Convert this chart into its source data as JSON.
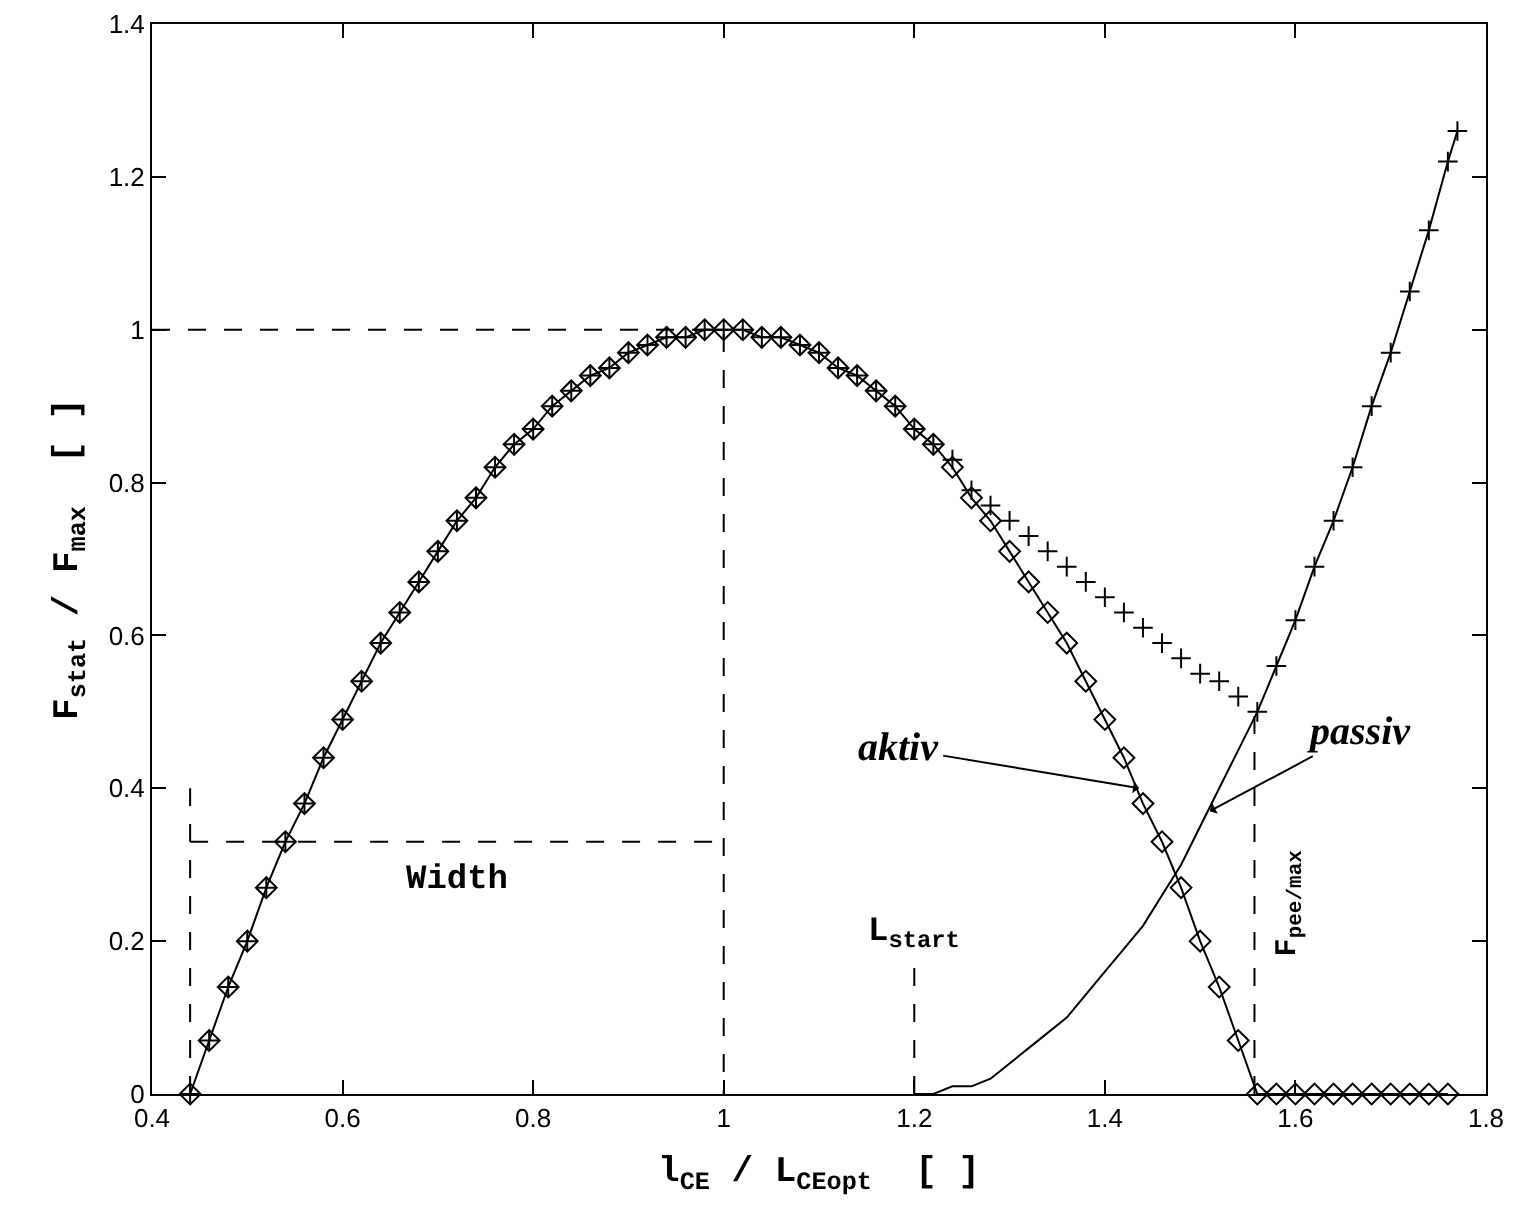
{
  "chart_data": {
    "type": "line",
    "xlabel": "l$_{CE}$ / L$_{CEopt}$  [ ]",
    "ylabel": "F$_{stat}$ / F$_{max}$  [ ]",
    "xlim": [
      0.4,
      1.8
    ],
    "xticks": [
      0.4,
      0.6,
      0.8,
      1,
      1.2,
      1.4,
      1.6,
      1.8
    ],
    "ylim": [
      0,
      1.4
    ],
    "yticks": [
      0,
      0.2,
      0.4,
      0.6,
      0.8,
      1,
      1.2,
      1.4
    ],
    "grid": false,
    "series": [
      {
        "marker": "diamond",
        "color": "#000000",
        "x": [
          0.44,
          0.46,
          0.48,
          0.5,
          0.52,
          0.54,
          0.56,
          0.58,
          0.6,
          0.62,
          0.64,
          0.66,
          0.68,
          0.7,
          0.72,
          0.74,
          0.76,
          0.78,
          0.8,
          0.82,
          0.84,
          0.86,
          0.88,
          0.9,
          0.92,
          0.94,
          0.96,
          0.98,
          1,
          1.02,
          1.04,
          1.06,
          1.08,
          1.1,
          1.12,
          1.14,
          1.16,
          1.18,
          1.2,
          1.22,
          1.24,
          1.26,
          1.28,
          1.3,
          1.32,
          1.34,
          1.36,
          1.38,
          1.4,
          1.42,
          1.44,
          1.46,
          1.48,
          1.5,
          1.52,
          1.54,
          1.56,
          1.58,
          1.6,
          1.62,
          1.64,
          1.66,
          1.68,
          1.7,
          1.72,
          1.74,
          1.76
        ],
        "values": [
          0,
          0.07,
          0.14,
          0.2,
          0.27,
          0.33,
          0.38,
          0.44,
          0.49,
          0.54,
          0.59,
          0.63,
          0.67,
          0.71,
          0.75,
          0.78,
          0.82,
          0.85,
          0.87,
          0.9,
          0.92,
          0.94,
          0.95,
          0.97,
          0.98,
          0.99,
          0.99,
          1,
          1,
          1,
          0.99,
          0.99,
          0.98,
          0.97,
          0.95,
          0.94,
          0.92,
          0.9,
          0.87,
          0.85,
          0.82,
          0.78,
          0.75,
          0.71,
          0.67,
          0.63,
          0.59,
          0.54,
          0.49,
          0.44,
          0.38,
          0.33,
          0.27,
          0.2,
          0.14,
          0.07,
          0,
          0,
          0,
          0,
          0,
          0,
          0,
          0,
          0,
          0,
          0
        ]
      },
      {
        "marker": "none",
        "color": "#000000",
        "x": [
          1.2,
          1.22,
          1.24,
          1.26,
          1.28,
          1.3,
          1.32,
          1.34,
          1.36,
          1.38,
          1.4,
          1.42,
          1.44,
          1.46,
          1.48,
          1.5,
          1.52,
          1.54,
          1.56,
          1.58,
          1.6,
          1.62,
          1.64,
          1.66,
          1.68,
          1.7,
          1.72,
          1.74,
          1.76,
          1.77
        ],
        "values": [
          0,
          0,
          0.01,
          0.01,
          0.02,
          0.04,
          0.06,
          0.08,
          0.1,
          0.13,
          0.16,
          0.19,
          0.22,
          0.26,
          0.3,
          0.35,
          0.4,
          0.45,
          0.5,
          0.56,
          0.62,
          0.69,
          0.75,
          0.82,
          0.9,
          0.97,
          1.05,
          1.13,
          1.22,
          1.26
        ]
      },
      {
        "type": "scatter",
        "marker": "cross",
        "color": "#000000",
        "x": [
          0.44,
          0.46,
          0.48,
          0.5,
          0.52,
          0.54,
          0.56,
          0.58,
          0.6,
          0.62,
          0.64,
          0.66,
          0.68,
          0.7,
          0.72,
          0.74,
          0.76,
          0.78,
          0.8,
          0.82,
          0.84,
          0.86,
          0.88,
          0.9,
          0.92,
          0.94,
          0.96,
          0.98,
          1,
          1.02,
          1.04,
          1.06,
          1.08,
          1.1,
          1.12,
          1.14,
          1.16,
          1.18,
          1.2,
          1.22,
          1.24,
          1.26,
          1.28,
          1.3,
          1.32,
          1.34,
          1.36,
          1.38,
          1.4,
          1.42,
          1.44,
          1.46,
          1.48,
          1.5,
          1.52,
          1.54,
          1.56,
          1.58,
          1.6,
          1.62,
          1.64,
          1.66,
          1.68,
          1.7,
          1.72,
          1.74,
          1.76,
          1.77
        ],
        "values": [
          0,
          0.07,
          0.14,
          0.2,
          0.27,
          0.33,
          0.38,
          0.44,
          0.49,
          0.54,
          0.59,
          0.63,
          0.67,
          0.71,
          0.75,
          0.78,
          0.82,
          0.85,
          0.87,
          0.9,
          0.92,
          0.94,
          0.95,
          0.97,
          0.98,
          0.99,
          0.99,
          1,
          1,
          1,
          0.99,
          0.99,
          0.98,
          0.97,
          0.95,
          0.94,
          0.92,
          0.9,
          0.87,
          0.85,
          0.83,
          0.79,
          0.77,
          0.75,
          0.73,
          0.71,
          0.69,
          0.67,
          0.65,
          0.63,
          0.61,
          0.59,
          0.57,
          0.55,
          0.54,
          0.52,
          0.5,
          0.56,
          0.62,
          0.69,
          0.75,
          0.82,
          0.9,
          0.97,
          1.05,
          1.13,
          1.22,
          1.26
        ]
      },
      {
        "type": "line",
        "marker": "none",
        "line_style": "dashed",
        "color": "#000000",
        "x": [
          0.4,
          1,
          1
        ],
        "values": [
          1,
          1,
          0
        ]
      },
      {
        "type": "line",
        "marker": "none",
        "line_style": "dashed",
        "color": "#000000",
        "x": [
          0.44,
          0.44
        ],
        "values": [
          0,
          0.4
        ]
      },
      {
        "type": "line",
        "marker": "none",
        "line_style": "dashed",
        "color": "#000000",
        "x": [
          0.44,
          1
        ],
        "values": [
          0.33,
          0.33
        ]
      },
      {
        "type": "line",
        "marker": "none",
        "line_style": "dashed",
        "color": "#000000",
        "x": [
          1.2,
          1.2
        ],
        "values": [
          0,
          0.17
        ]
      },
      {
        "type": "line",
        "marker": "none",
        "line_style": "dashed",
        "color": "#000000",
        "x": [
          1.557,
          1.557
        ],
        "values": [
          0,
          0.5
        ]
      }
    ],
    "annotations": [
      {
        "text": "Width",
        "x": 0.72,
        "y": 0.33
      },
      {
        "text": "L$_{start}$",
        "x": 1.2,
        "y": 0.17
      },
      {
        "text": "aktiv",
        "x": 1.436,
        "y": 0.4
      },
      {
        "text": "passiv",
        "x": 1.51,
        "y": 0.37
      },
      {
        "text": "F$_{pee/max}$",
        "x": 1.557,
        "y": 0.25
      }
    ]
  }
}
